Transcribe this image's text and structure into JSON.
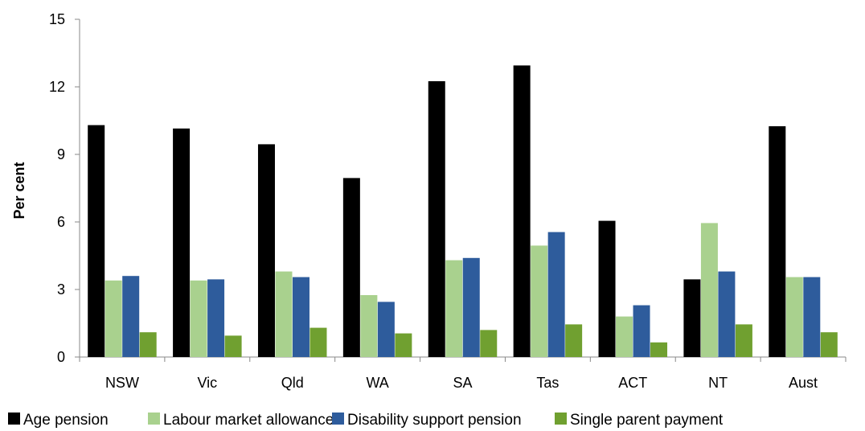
{
  "chart_data": {
    "type": "bar",
    "title": "",
    "xlabel": "",
    "ylabel": "Per cent",
    "ylim": [
      0,
      15
    ],
    "yticks": [
      0,
      3,
      6,
      9,
      12,
      15
    ],
    "grid": false,
    "legend_position": "bottom",
    "categories": [
      "NSW",
      "Vic",
      "Qld",
      "WA",
      "SA",
      "Tas",
      "ACT",
      "NT",
      "Aust"
    ],
    "series": [
      {
        "name": "Age pension",
        "color": "#000000",
        "values": [
          10.3,
          10.15,
          9.45,
          7.95,
          12.25,
          12.95,
          6.05,
          3.45,
          10.25
        ]
      },
      {
        "name": "Labour market allowance",
        "color": "#a9d18e",
        "values": [
          3.4,
          3.4,
          3.8,
          2.75,
          4.3,
          4.95,
          1.8,
          5.95,
          3.55
        ]
      },
      {
        "name": "Disability support pension",
        "color": "#2e5c9c",
        "values": [
          3.6,
          3.45,
          3.55,
          2.45,
          4.4,
          5.55,
          2.3,
          3.8,
          3.55
        ]
      },
      {
        "name": "Single parent payment",
        "color": "#70a030",
        "values": [
          1.1,
          0.95,
          1.3,
          1.05,
          1.2,
          1.45,
          0.65,
          1.45,
          1.1
        ]
      }
    ]
  }
}
